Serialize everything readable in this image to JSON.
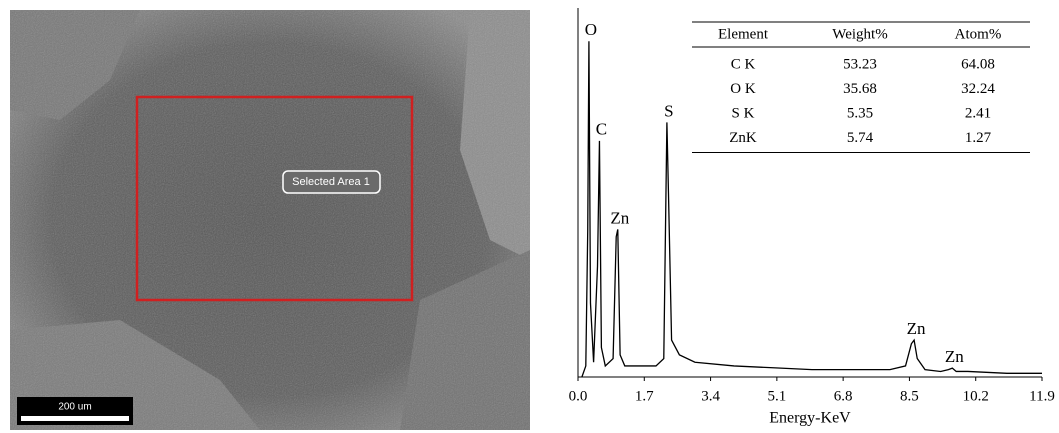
{
  "sem": {
    "label": "Selected Area 1",
    "scale_bar": "200 um"
  },
  "chart_data": {
    "type": "line",
    "x_label": "Energy-KeV",
    "xlim": [
      0,
      11.9
    ],
    "xticks": [
      {
        "value": 0,
        "label": "0.0"
      },
      1.7,
      3.4,
      5.1,
      6.8,
      8.5,
      10.2,
      11.9
    ],
    "ylim": [
      0,
      100
    ],
    "x": [
      0.1,
      0.2,
      0.25,
      0.28,
      0.32,
      0.4,
      0.5,
      0.55,
      0.6,
      0.7,
      0.9,
      0.98,
      1.02,
      1.08,
      1.2,
      1.5,
      2.0,
      2.2,
      2.28,
      2.32,
      2.4,
      2.6,
      3.0,
      4,
      5,
      6,
      7,
      8,
      8.4,
      8.55,
      8.62,
      8.7,
      8.9,
      9.3,
      9.5,
      9.6,
      9.7,
      10,
      11,
      11.9
    ],
    "series": [
      {
        "color": "#000000",
        "values": [
          0,
          3,
          40,
          91,
          20,
          4,
          30,
          64,
          8,
          3,
          5,
          38,
          40,
          6,
          3,
          3,
          3,
          5,
          69,
          50,
          10,
          6,
          4,
          3,
          2.5,
          2,
          2,
          2,
          3,
          9,
          10,
          5,
          2,
          1.5,
          2,
          2.4,
          1.5,
          1.5,
          1,
          1
        ]
      }
    ],
    "annotations": [
      {
        "text": "O",
        "x": 0.28
      },
      {
        "text": "C",
        "x": 0.55
      },
      {
        "text": "Zn",
        "x": 1.02
      },
      {
        "text": "S",
        "x": 2.28
      },
      {
        "text": "Zn",
        "x": 8.62
      },
      {
        "text": "Zn",
        "x": 9.6
      }
    ],
    "table": {
      "header": [
        "Element",
        "Weight%",
        "Atom%"
      ],
      "rows": [
        [
          "C K",
          53.23,
          64.08
        ],
        [
          "O K",
          35.68,
          32.24
        ],
        [
          "S K",
          5.35,
          2.41
        ],
        [
          "ZnK",
          5.74,
          1.27
        ]
      ]
    }
  }
}
